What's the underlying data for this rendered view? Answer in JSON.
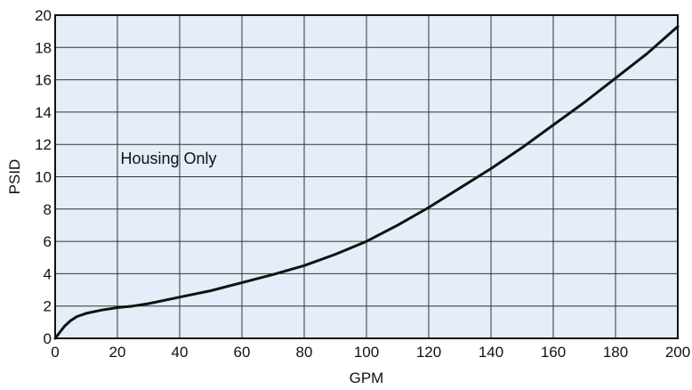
{
  "chart_data": {
    "type": "line",
    "title": "",
    "xlabel": "GPM",
    "ylabel": "PSID",
    "xlim": [
      0,
      200
    ],
    "ylim": [
      0,
      20
    ],
    "x_ticks": [
      0,
      20,
      40,
      60,
      80,
      100,
      120,
      140,
      160,
      180,
      200
    ],
    "y_ticks": [
      0,
      2,
      4,
      6,
      8,
      10,
      12,
      14,
      16,
      18,
      20
    ],
    "grid": true,
    "annotations": [
      {
        "text": "Housing Only",
        "x": 21,
        "y": 10.8
      }
    ],
    "colors": {
      "plot_background": "#e4edf8",
      "grid": "#333333",
      "line": "#111111"
    },
    "series": [
      {
        "x": [
          0,
          1,
          2,
          3,
          5,
          7,
          10,
          15,
          20,
          25,
          30,
          40,
          50,
          60,
          70,
          80,
          90,
          100,
          110,
          120,
          130,
          140,
          150,
          160,
          170,
          180,
          190,
          200
        ],
        "values": [
          0,
          0.25,
          0.5,
          0.75,
          1.1,
          1.35,
          1.55,
          1.75,
          1.9,
          2.0,
          2.15,
          2.55,
          2.95,
          3.45,
          3.95,
          4.5,
          5.2,
          6.0,
          7.0,
          8.1,
          9.3,
          10.5,
          11.8,
          13.2,
          14.6,
          16.1,
          17.6,
          19.3
        ]
      }
    ]
  }
}
